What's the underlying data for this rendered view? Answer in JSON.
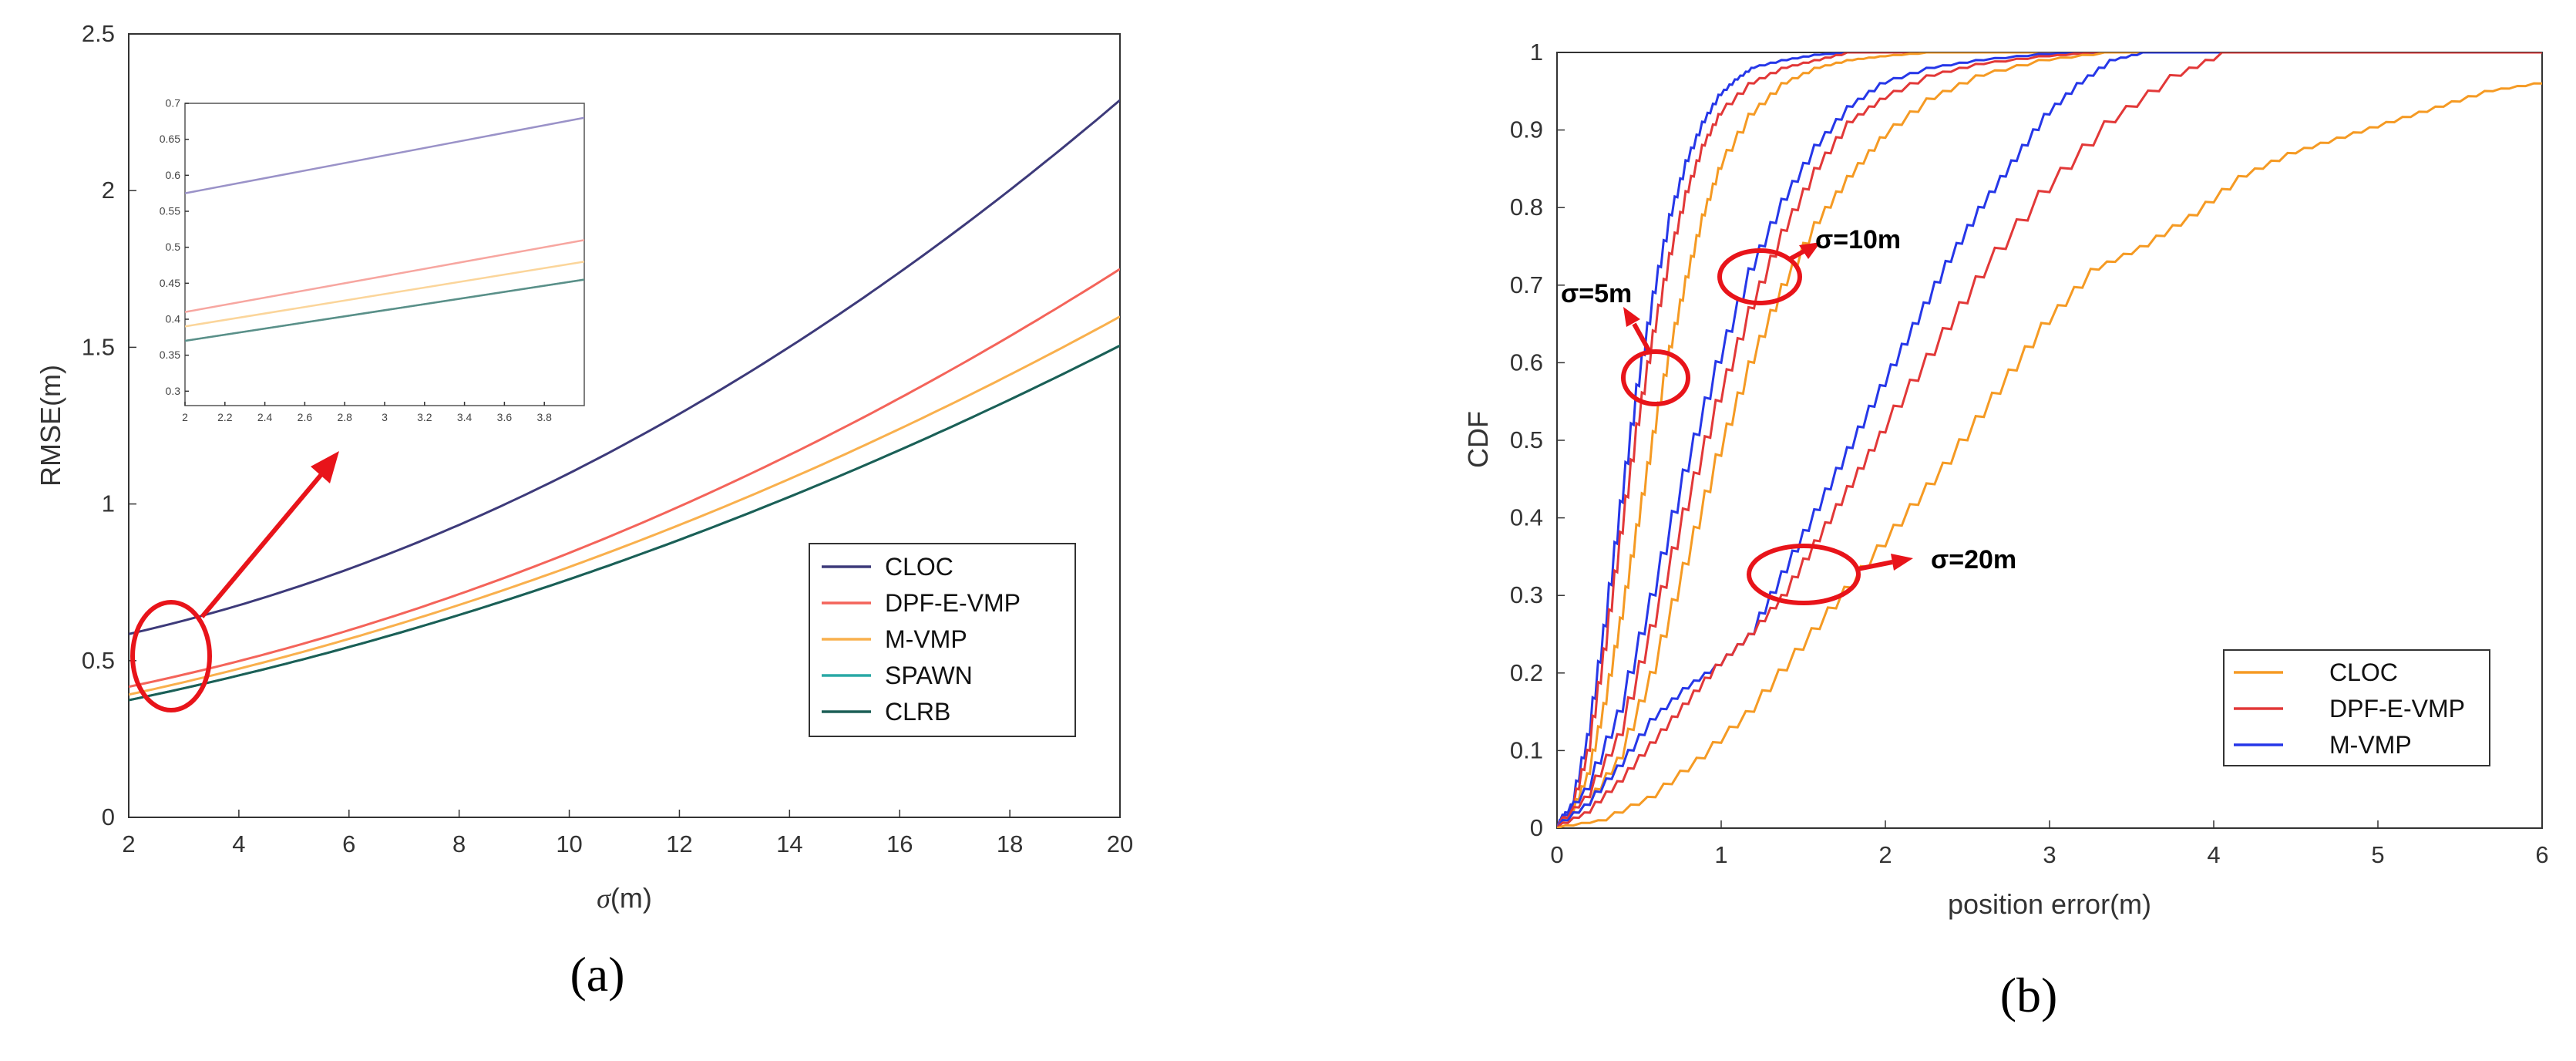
{
  "chart_data": [
    {
      "type": "line",
      "panel_label": "(a)",
      "xlabel_symbol": "σ",
      "xlabel_unit": "(m)",
      "ylabel": "RMSE(m)",
      "xlim": [
        2,
        20
      ],
      "ylim": [
        0,
        2.5
      ],
      "xticks": [
        "2",
        "4",
        "6",
        "8",
        "10",
        "12",
        "14",
        "16",
        "18",
        "20"
      ],
      "yticks": [
        "0",
        "0.5",
        "1",
        "1.5",
        "2",
        "2.5"
      ],
      "series": [
        {
          "name": "CLOC",
          "color": "#3d3a7a",
          "x": [
            2,
            4,
            6,
            8,
            10,
            12,
            14,
            16,
            18,
            20
          ],
          "values": [
            0.575,
            0.68,
            0.8,
            0.94,
            1.1,
            1.29,
            1.5,
            1.73,
            1.98,
            2.31
          ]
        },
        {
          "name": "DPF-E-VMP",
          "color": "#f4645a",
          "x": [
            2,
            4,
            6,
            8,
            10,
            12,
            14,
            16,
            18,
            20
          ],
          "values": [
            0.41,
            0.5,
            0.6,
            0.72,
            0.85,
            0.99,
            1.15,
            1.33,
            1.53,
            1.76
          ]
        },
        {
          "name": "M-VMP",
          "color": "#f9b04d",
          "x": [
            2,
            4,
            6,
            8,
            10,
            12,
            14,
            16,
            18,
            20
          ],
          "values": [
            0.39,
            0.475,
            0.57,
            0.68,
            0.8,
            0.93,
            1.08,
            1.24,
            1.41,
            1.6
          ]
        },
        {
          "name": "SPAWN",
          "color": "#2aa9a5",
          "x": [
            2,
            4,
            6,
            8,
            10,
            12,
            14,
            16,
            18,
            20
          ],
          "values": [
            0.37,
            0.455,
            0.545,
            0.65,
            0.76,
            0.885,
            1.02,
            1.17,
            1.33,
            1.51
          ]
        },
        {
          "name": "CLRB",
          "color": "#1c5f56",
          "x": [
            2,
            4,
            6,
            8,
            10,
            12,
            14,
            16,
            18,
            20
          ],
          "values": [
            0.37,
            0.455,
            0.545,
            0.65,
            0.76,
            0.885,
            1.02,
            1.17,
            1.33,
            1.51
          ]
        }
      ],
      "inset": {
        "xlim": [
          2,
          4
        ],
        "ylim": [
          0.28,
          0.7
        ],
        "xticks": [
          "2",
          "2.2",
          "2.4",
          "2.6",
          "2.8",
          "3",
          "3.2",
          "3.4",
          "3.6",
          "3.8"
        ],
        "yticks": [
          "0.3",
          "0.35",
          "0.4",
          "0.45",
          "0.5",
          "0.55",
          "0.6",
          "0.65",
          "0.7"
        ],
        "series": [
          {
            "name": "CLOC",
            "color": "#9a92c8",
            "values_at_xlim": [
              0.575,
              0.68
            ]
          },
          {
            "name": "DPF-E-VMP",
            "color": "#f7a6a0",
            "values_at_xlim": [
              0.41,
              0.51
            ]
          },
          {
            "name": "M-VMP",
            "color": "#fbd59a",
            "values_at_xlim": [
              0.39,
              0.48
            ]
          },
          {
            "name": "SPAWN",
            "color": "#8fcfcb",
            "values_at_xlim": [
              0.37,
              0.455
            ]
          },
          {
            "name": "CLRB",
            "color": "#5a8f88",
            "values_at_xlim": [
              0.37,
              0.455
            ]
          }
        ]
      }
    },
    {
      "type": "line",
      "panel_label": "(b)",
      "xlabel": "position error(m)",
      "ylabel": "CDF",
      "xlim": [
        0,
        6
      ],
      "ylim": [
        0,
        1
      ],
      "xticks": [
        "0",
        "1",
        "2",
        "3",
        "4",
        "5",
        "6"
      ],
      "yticks": [
        "0",
        "0.1",
        "0.2",
        "0.3",
        "0.4",
        "0.5",
        "0.6",
        "0.7",
        "0.8",
        "0.9",
        "1"
      ],
      "legend": [
        {
          "name": "CLOC",
          "color": "#f59a23"
        },
        {
          "name": "DPF-E-VMP",
          "color": "#e23838"
        },
        {
          "name": "M-VMP",
          "color": "#2637e8"
        }
      ],
      "annotations": [
        "σ=5m",
        "σ=10m",
        "σ=20m"
      ],
      "series": [
        {
          "name": "M-VMP σ=5m",
          "color": "#2637e8",
          "x": [
            0,
            0.1,
            0.2,
            0.3,
            0.4,
            0.5,
            0.6,
            0.7,
            0.8,
            0.9,
            1.0,
            1.1,
            1.2,
            1.4,
            1.6,
            1.8,
            2.0,
            6
          ],
          "values": [
            0,
            0.03,
            0.12,
            0.26,
            0.42,
            0.57,
            0.69,
            0.79,
            0.86,
            0.91,
            0.945,
            0.965,
            0.98,
            0.99,
            0.997,
            1,
            1,
            1
          ]
        },
        {
          "name": "DPF-E-VMP σ=5m",
          "color": "#e23838",
          "x": [
            0,
            0.1,
            0.2,
            0.3,
            0.4,
            0.5,
            0.6,
            0.7,
            0.8,
            0.9,
            1.0,
            1.2,
            1.4,
            1.6,
            1.8,
            2.0,
            6
          ],
          "values": [
            0,
            0.025,
            0.1,
            0.23,
            0.38,
            0.52,
            0.64,
            0.74,
            0.82,
            0.88,
            0.92,
            0.96,
            0.98,
            0.99,
            1,
            1,
            1
          ]
        },
        {
          "name": "CLOC σ=5m",
          "color": "#f59a23",
          "x": [
            0,
            0.1,
            0.2,
            0.3,
            0.4,
            0.5,
            0.6,
            0.7,
            0.8,
            0.9,
            1.0,
            1.2,
            1.4,
            1.6,
            1.8,
            2.0,
            2.3,
            6
          ],
          "values": [
            0,
            0.02,
            0.07,
            0.16,
            0.27,
            0.39,
            0.51,
            0.62,
            0.71,
            0.79,
            0.85,
            0.92,
            0.96,
            0.98,
            0.99,
            0.995,
            1,
            1
          ]
        },
        {
          "name": "M-VMP σ=10m",
          "color": "#2637e8",
          "x": [
            0,
            0.2,
            0.4,
            0.6,
            0.8,
            1.0,
            1.2,
            1.4,
            1.6,
            1.8,
            2.0,
            2.3,
            2.6,
            3.0,
            3.4,
            6
          ],
          "values": [
            0,
            0.05,
            0.15,
            0.3,
            0.46,
            0.6,
            0.72,
            0.81,
            0.88,
            0.93,
            0.96,
            0.98,
            0.99,
            0.998,
            1,
            1
          ]
        },
        {
          "name": "DPF-E-VMP σ=10m",
          "color": "#e23838",
          "x": [
            0,
            0.2,
            0.4,
            0.6,
            0.8,
            1.0,
            1.2,
            1.4,
            1.6,
            1.8,
            2.0,
            2.3,
            2.6,
            3.0,
            3.3,
            6
          ],
          "values": [
            0,
            0.04,
            0.12,
            0.26,
            0.41,
            0.55,
            0.67,
            0.77,
            0.85,
            0.91,
            0.94,
            0.97,
            0.985,
            0.995,
            1,
            1
          ]
        },
        {
          "name": "CLOC σ=10m",
          "color": "#f59a23",
          "x": [
            0,
            0.2,
            0.4,
            0.6,
            0.8,
            1.0,
            1.2,
            1.4,
            1.6,
            1.8,
            2.0,
            2.3,
            2.6,
            3.0,
            3.4,
            6
          ],
          "values": [
            0,
            0.03,
            0.09,
            0.2,
            0.34,
            0.48,
            0.6,
            0.7,
            0.78,
            0.84,
            0.89,
            0.94,
            0.97,
            0.99,
            1,
            1
          ]
        },
        {
          "name": "M-VMP σ=20m",
          "color": "#2637e8",
          "x": [
            0,
            0.2,
            0.4,
            0.6,
            0.8,
            1.0,
            1.2,
            1.4,
            1.6,
            1.8,
            2.0,
            2.2,
            2.4,
            2.6,
            2.8,
            3.0,
            3.2,
            3.4,
            3.6,
            6
          ],
          "values": [
            0,
            0.03,
            0.08,
            0.14,
            0.18,
            0.21,
            0.25,
            0.33,
            0.41,
            0.49,
            0.57,
            0.65,
            0.73,
            0.8,
            0.86,
            0.92,
            0.96,
            0.99,
            1,
            1
          ]
        },
        {
          "name": "DPF-E-VMP σ=20m",
          "color": "#e23838",
          "x": [
            0,
            0.2,
            0.4,
            0.6,
            0.8,
            1.0,
            1.2,
            1.4,
            1.6,
            1.8,
            2.0,
            2.3,
            2.6,
            3.0,
            3.4,
            3.8,
            4.1,
            6
          ],
          "values": [
            0,
            0.02,
            0.06,
            0.11,
            0.16,
            0.21,
            0.25,
            0.3,
            0.37,
            0.44,
            0.51,
            0.61,
            0.71,
            0.82,
            0.91,
            0.97,
            1,
            1
          ]
        },
        {
          "name": "CLOC σ=20m",
          "color": "#f59a23",
          "x": [
            0,
            0.3,
            0.6,
            0.9,
            1.2,
            1.5,
            1.8,
            2.1,
            2.4,
            2.7,
            3.0,
            3.3,
            3.6,
            3.9,
            4.2,
            4.5,
            4.8,
            5.1,
            5.4,
            5.7,
            6.0
          ],
          "values": [
            0,
            0.01,
            0.04,
            0.09,
            0.15,
            0.23,
            0.31,
            0.39,
            0.47,
            0.56,
            0.65,
            0.72,
            0.75,
            0.79,
            0.84,
            0.87,
            0.89,
            0.91,
            0.93,
            0.95,
            0.96
          ]
        }
      ]
    }
  ]
}
